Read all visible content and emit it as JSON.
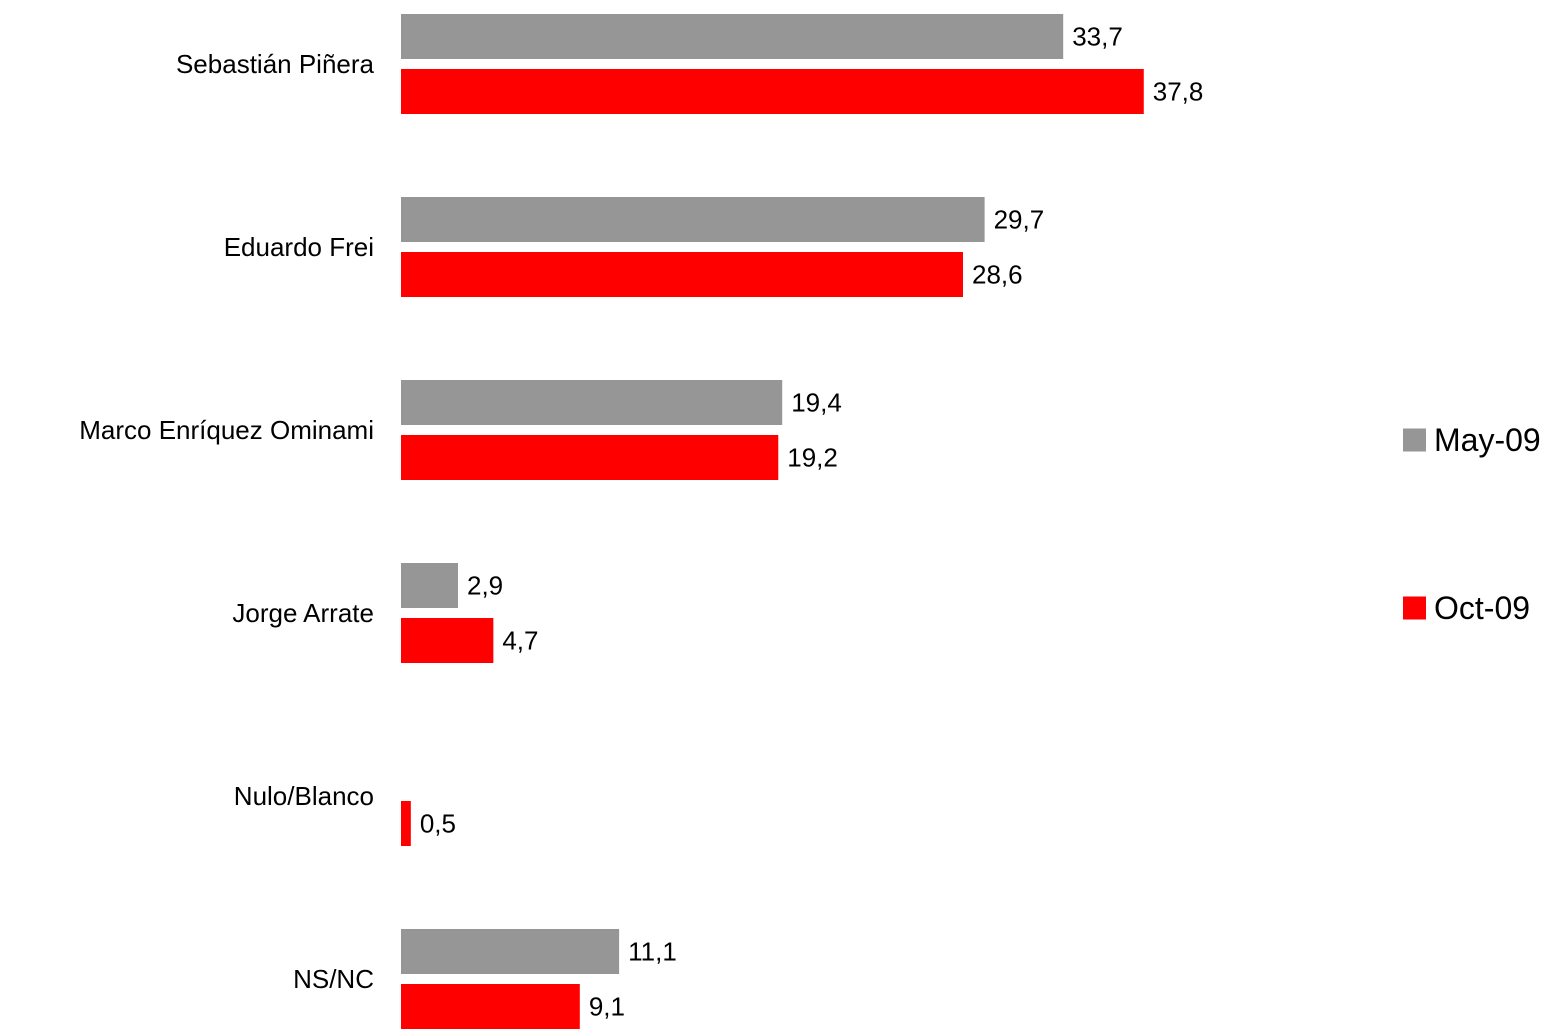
{
  "chart_data": {
    "type": "bar",
    "orientation": "horizontal",
    "categories": [
      "Sebastián Piñera",
      "Eduardo Frei",
      "Marco Enríquez Ominami",
      "Jorge Arrate",
      "Nulo/Blanco",
      "NS/NC"
    ],
    "series": [
      {
        "name": "May-09",
        "color": "#969696",
        "values": [
          33.7,
          29.7,
          19.4,
          2.9,
          null,
          11.1
        ],
        "labels": [
          "33,7",
          "29,7",
          "19,4",
          "2,9",
          "",
          "11,1"
        ]
      },
      {
        "name": "Oct-09",
        "color": "#ff0000",
        "values": [
          37.8,
          28.6,
          19.2,
          4.7,
          0.5,
          9.1
        ],
        "labels": [
          "37,8",
          "28,6",
          "19,2",
          "4,7",
          "0,5",
          "9,1"
        ]
      }
    ],
    "legend": "right",
    "grid": false,
    "axis_visible": false
  }
}
